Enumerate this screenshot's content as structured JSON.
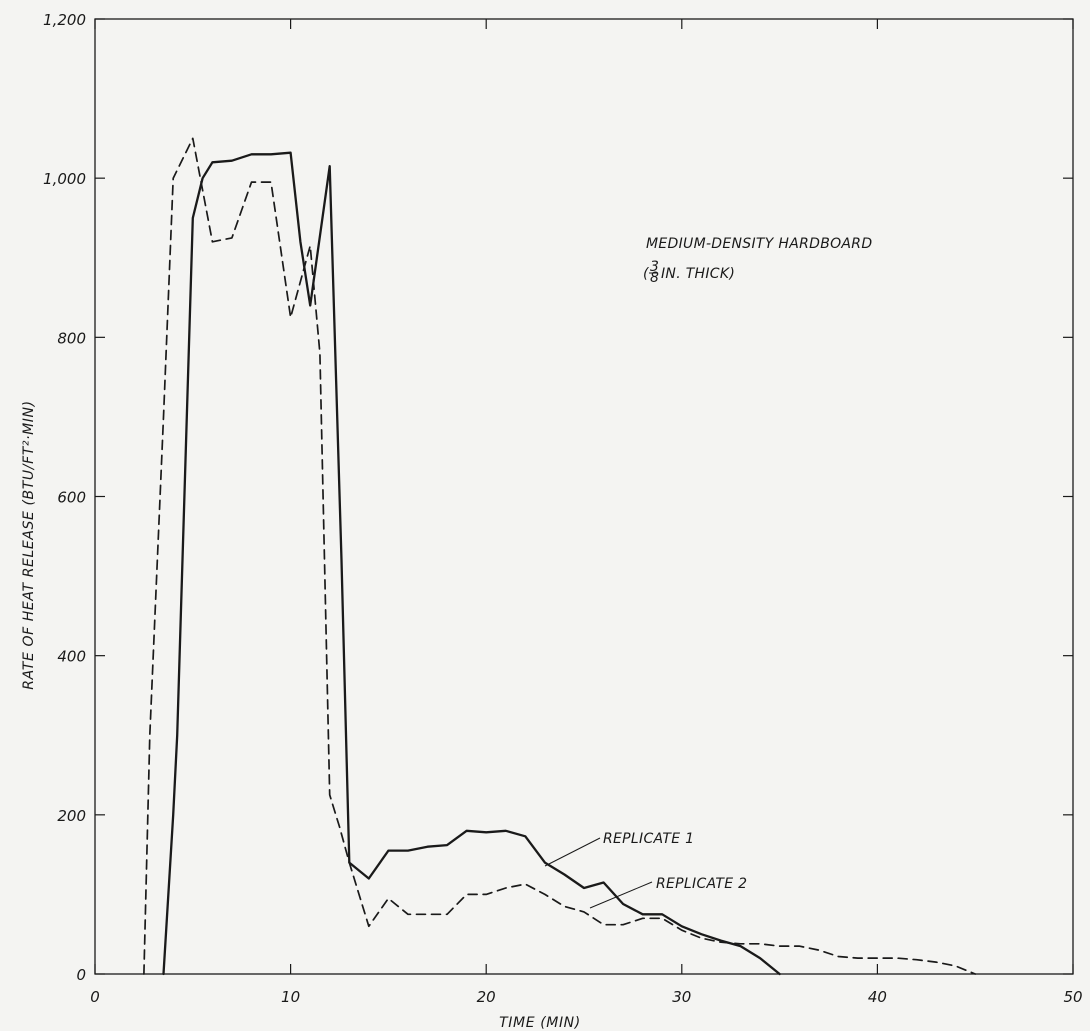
{
  "chart_data": {
    "type": "line",
    "title": "",
    "xlabel": "TIME (MIN)",
    "ylabel": "RATE OF HEAT RELEASE (BTU/FT²·MIN)",
    "xlim": [
      0,
      50
    ],
    "ylim": [
      0,
      1200
    ],
    "x_ticks": [
      "0",
      "10",
      "20",
      "30",
      "40",
      "50"
    ],
    "y_ticks": [
      "0",
      "200",
      "400",
      "600",
      "800",
      "1,000",
      "1,200"
    ],
    "grid": false,
    "annotation": {
      "line1": "MEDIUM-DENSITY HARDBOARD",
      "thickness": "IN. THICK)",
      "frac_num": "3",
      "frac_den": "8"
    },
    "series": [
      {
        "name": "REPLICATE 1",
        "style": "solid",
        "color": "#1a1a1a",
        "x": [
          3.5,
          4,
          4.2,
          5,
          5.5,
          6,
          7,
          8,
          9,
          10,
          10.5,
          11,
          12,
          12.6,
          13,
          14,
          15,
          16,
          17,
          18,
          19,
          20,
          21,
          22,
          23,
          24,
          25,
          26,
          27,
          28,
          29,
          30,
          31,
          32,
          33,
          34,
          35
        ],
        "y": [
          0,
          200,
          300,
          950,
          1000,
          1020,
          1022,
          1030,
          1030,
          1032,
          920,
          840,
          1015,
          520,
          140,
          120,
          155,
          155,
          160,
          162,
          180,
          178,
          180,
          173,
          140,
          125,
          108,
          115,
          88,
          75,
          75,
          60,
          50,
          42,
          35,
          20,
          0
        ]
      },
      {
        "name": "REPLICATE 2",
        "style": "dashed",
        "color": "#1a1a1a",
        "x": [
          2.5,
          2.8,
          3.5,
          4,
          5,
          6,
          7,
          8,
          9,
          10,
          11,
          11.5,
          12,
          12.5,
          13,
          14,
          15,
          16,
          17,
          18,
          19,
          20,
          21,
          22,
          23,
          24,
          25,
          26,
          27,
          28,
          29,
          30,
          31,
          32,
          33,
          34,
          35,
          36,
          37,
          38,
          39,
          40,
          41,
          42,
          43,
          44,
          45
        ],
        "y": [
          0,
          300,
          700,
          1000,
          1050,
          920,
          925,
          995,
          995,
          825,
          915,
          780,
          225,
          185,
          140,
          60,
          95,
          75,
          75,
          75,
          100,
          100,
          108,
          113,
          100,
          85,
          78,
          62,
          62,
          70,
          70,
          55,
          45,
          40,
          38,
          38,
          35,
          35,
          30,
          22,
          20,
          20,
          20,
          18,
          15,
          10,
          0
        ]
      }
    ]
  }
}
